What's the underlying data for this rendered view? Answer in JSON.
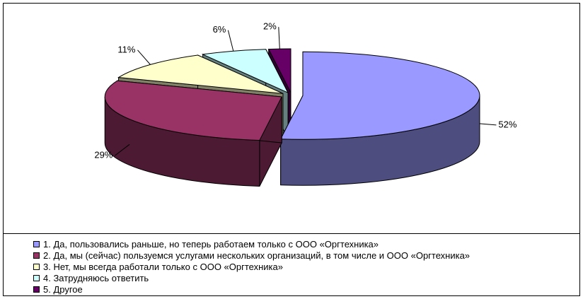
{
  "chart_data": {
    "type": "pie3d",
    "categories": [
      "1. Да, пользовались раньше, но теперь работаем только с ООО «Оргтехника»",
      "2. Да, мы (сейчас) пользуемся услугами нескольких организаций, в том числе и ООО «Оргтехника»",
      "3. Нет, мы всегда работали только с ООО «Оргтехника»",
      "4. Затрудняюсь ответить",
      "5. Другое"
    ],
    "values": [
      52,
      29,
      11,
      6,
      2
    ],
    "value_labels": [
      "52%",
      "29%",
      "11%",
      "6%",
      "2%"
    ],
    "colors": [
      "#9999ff",
      "#993366",
      "#ffffcc",
      "#ccffff",
      "#660066"
    ],
    "legend": "bottom"
  }
}
